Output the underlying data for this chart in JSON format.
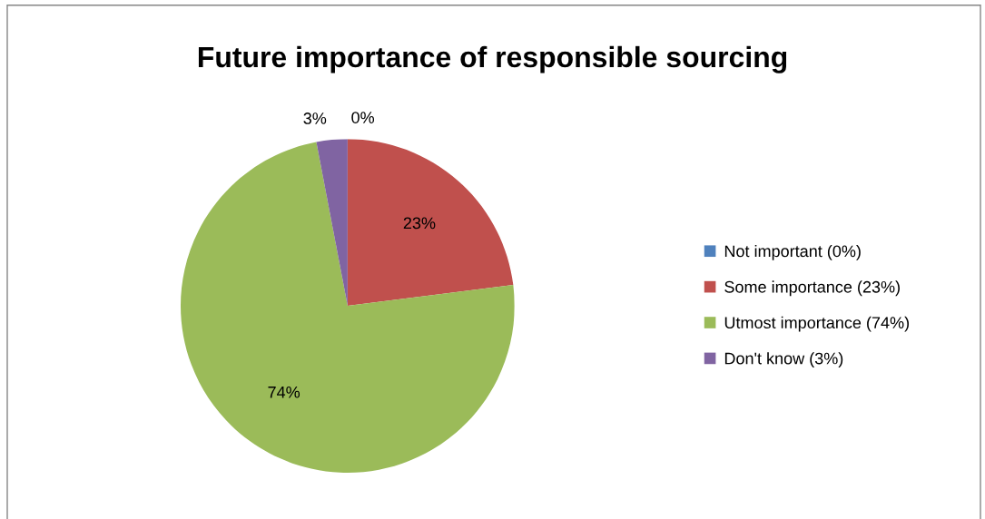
{
  "chart_data": {
    "type": "pie",
    "title": "Future importance of responsible sourcing",
    "categories": [
      "Not important (0%)",
      "Some importance (23%)",
      "Utmost importance (74%)",
      "Don't know (3%)"
    ],
    "values": [
      0,
      23,
      74,
      3
    ],
    "colors": [
      "#4f81bd",
      "#c0504d",
      "#9bbb59",
      "#8064a2"
    ],
    "value_labels": [
      "0%",
      "23%",
      "74%",
      "3%"
    ],
    "legend": "right"
  }
}
